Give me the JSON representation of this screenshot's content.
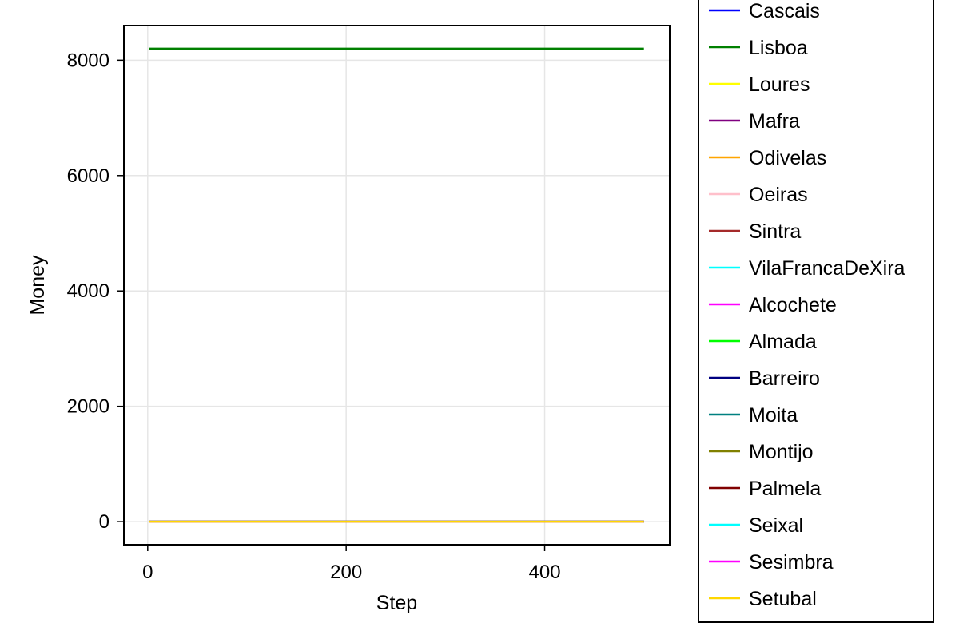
{
  "chart_data": {
    "type": "line",
    "title": "",
    "xlabel": "Step",
    "ylabel": "Money",
    "xlim": [
      -24,
      526
    ],
    "ylim": [
      -400,
      8600
    ],
    "xticks": [
      0,
      200,
      400
    ],
    "xtick_labels": [
      "0",
      "200",
      "400"
    ],
    "yticks": [
      0,
      2000,
      4000,
      6000,
      8000
    ],
    "ytick_labels": [
      "0",
      "2000",
      "4000",
      "6000",
      "8000"
    ],
    "grid": true,
    "legend_position": "right",
    "x": [
      1,
      500
    ],
    "series": [
      {
        "name": "Cascais",
        "color": "#0000ff",
        "values": [
          0,
          0
        ]
      },
      {
        "name": "Lisboa",
        "color": "#008000",
        "values": [
          8200,
          8200
        ]
      },
      {
        "name": "Loures",
        "color": "#ffff00",
        "values": [
          0,
          0
        ]
      },
      {
        "name": "Mafra",
        "color": "#800080",
        "values": [
          0,
          0
        ]
      },
      {
        "name": "Odivelas",
        "color": "#ffa500",
        "values": [
          0,
          0
        ]
      },
      {
        "name": "Oeiras",
        "color": "#ffc0cb",
        "values": [
          0,
          0
        ]
      },
      {
        "name": "Sintra",
        "color": "#a52a2a",
        "values": [
          0,
          0
        ]
      },
      {
        "name": "VilaFrancaDeXira",
        "color": "#00ffff",
        "values": [
          0,
          0
        ]
      },
      {
        "name": "Alcochete",
        "color": "#ff00ff",
        "values": [
          0,
          0
        ]
      },
      {
        "name": "Almada",
        "color": "#00ff00",
        "values": [
          0,
          0
        ]
      },
      {
        "name": "Barreiro",
        "color": "#000080",
        "values": [
          0,
          0
        ]
      },
      {
        "name": "Moita",
        "color": "#008080",
        "values": [
          0,
          0
        ]
      },
      {
        "name": "Montijo",
        "color": "#808000",
        "values": [
          0,
          0
        ]
      },
      {
        "name": "Palmela",
        "color": "#800000",
        "values": [
          0,
          0
        ]
      },
      {
        "name": "Seixal",
        "color": "#00ffff",
        "values": [
          0,
          0
        ]
      },
      {
        "name": "Sesimbra",
        "color": "#ff00ff",
        "values": [
          0,
          0
        ]
      },
      {
        "name": "Setubal",
        "color": "#ffd700",
        "values": [
          0,
          0
        ]
      }
    ]
  }
}
